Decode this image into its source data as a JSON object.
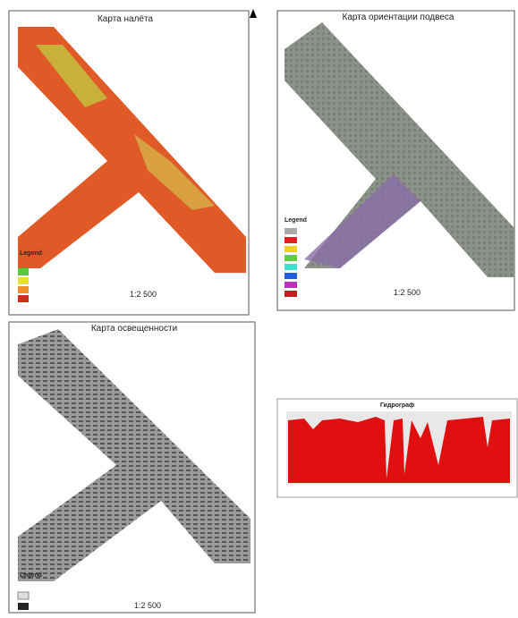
{
  "maps": [
    {
      "title": "Карта налёта",
      "scale": "1:2 500",
      "legend_title": "Legend"
    },
    {
      "title": "Карта ориентации подвеса",
      "scale": "1:2 500",
      "legend_title": "Legend"
    },
    {
      "title": "Карта освещенности",
      "scale": "1:2 500",
      "legend_title": "Legend"
    }
  ],
  "chart": {
    "title": "Гидрограф"
  }
}
